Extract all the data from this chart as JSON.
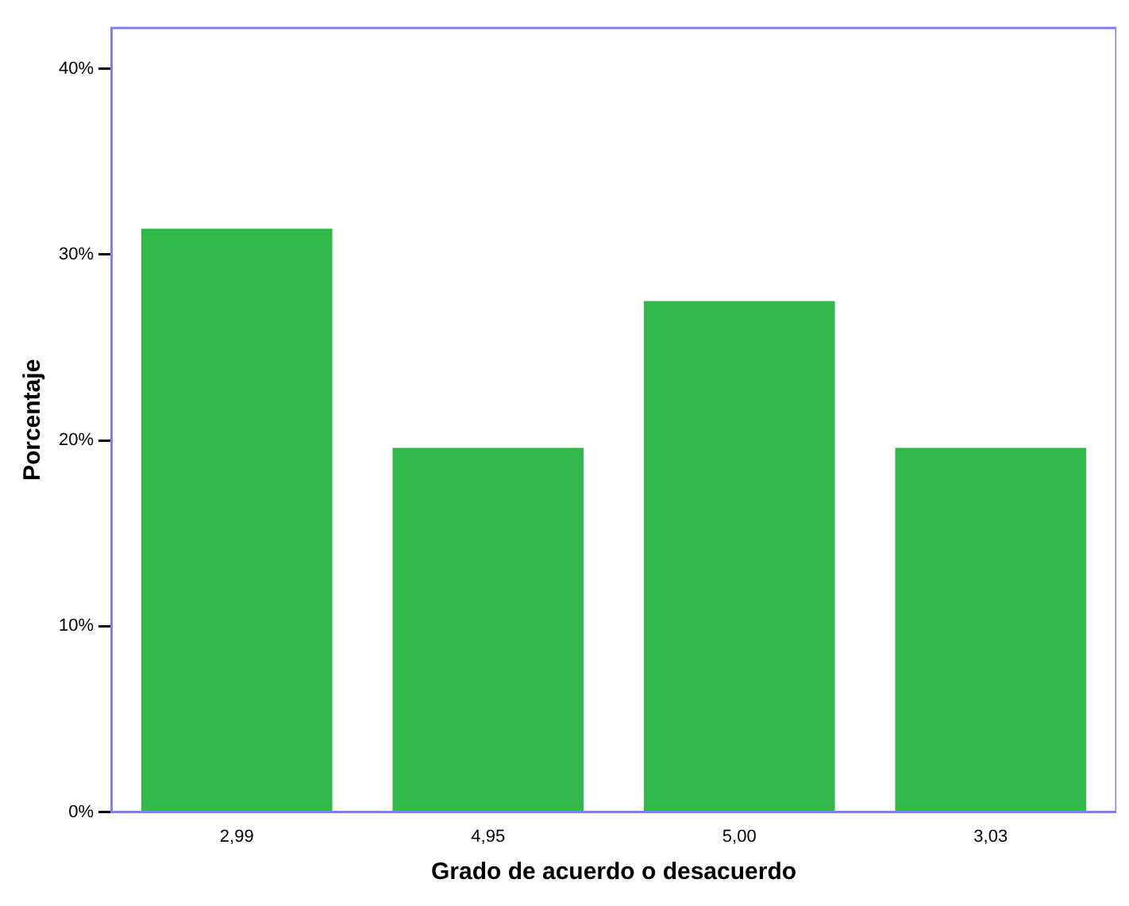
{
  "chart_data": {
    "type": "bar",
    "xlabel": "Grado de acuerdo o desacuerdo",
    "ylabel": "Porcentaje",
    "categories": [
      "2,99",
      "4,95",
      "5,00",
      "3,03"
    ],
    "values": [
      31.4,
      19.6,
      27.5,
      19.6
    ],
    "color": "#30b84a",
    "ylim": [
      0,
      42.2
    ],
    "yticks": [
      {
        "value": 0,
        "label": "0%"
      },
      {
        "value": 10,
        "label": "10%"
      },
      {
        "value": 20,
        "label": "20%"
      },
      {
        "value": 30,
        "label": "30%"
      },
      {
        "value": 40,
        "label": "40%"
      }
    ],
    "grid": false,
    "legend": false
  }
}
